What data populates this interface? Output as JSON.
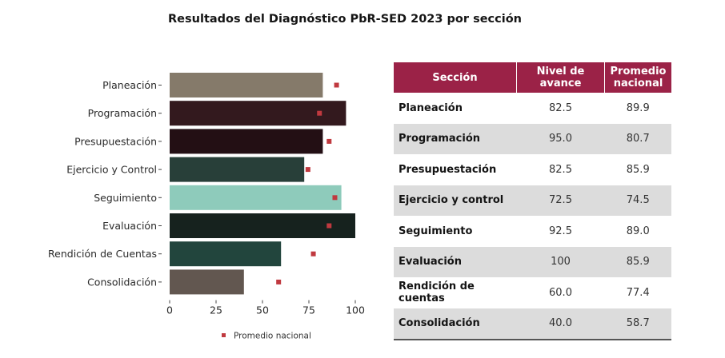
{
  "title": "Resultados del Diagnóstico PbR-SED 2023 por sección",
  "chart_data": {
    "type": "bar",
    "orientation": "horizontal",
    "title": "Resultados del Diagnóstico PbR-SED 2023 por sección",
    "xlabel": "",
    "ylabel": "",
    "xlim": [
      0,
      100
    ],
    "xticks": [
      0,
      25,
      50,
      75,
      100
    ],
    "grid": false,
    "categories": [
      "Planeación",
      "Programación",
      "Presupuestación",
      "Ejercicio y Control",
      "Seguimiento",
      "Evaluación",
      "Rendición de Cuentas",
      "Consolidación"
    ],
    "series": [
      {
        "name": "Nivel de avance",
        "type": "bar",
        "values": [
          82.5,
          95.0,
          82.5,
          72.5,
          92.5,
          100,
          60.0,
          40.0
        ],
        "colors": [
          "#857a6a",
          "#33191e",
          "#230f14",
          "#283f39",
          "#8ecbbb",
          "#16221e",
          "#22453d",
          "#625750"
        ]
      },
      {
        "name": "Promedio nacional",
        "type": "marker",
        "values": [
          89.9,
          80.7,
          85.9,
          74.5,
          89.0,
          85.9,
          77.4,
          58.7
        ],
        "color": "#c0393f"
      }
    ],
    "legend": {
      "entries": [
        "Promedio nacional"
      ],
      "position": "bottom"
    }
  },
  "table": {
    "headers": [
      "Sección",
      "Nivel de avance",
      "Promedio nacional"
    ],
    "header_color": "#9b2247",
    "rows": [
      {
        "seccion": "Planeación",
        "nivel": "82.5",
        "promedio": "89.9"
      },
      {
        "seccion": "Programación",
        "nivel": "95.0",
        "promedio": "80.7"
      },
      {
        "seccion": "Presupuestación",
        "nivel": "82.5",
        "promedio": "85.9"
      },
      {
        "seccion": "Ejercicio y control",
        "nivel": "72.5",
        "promedio": "74.5"
      },
      {
        "seccion": "Seguimiento",
        "nivel": "92.5",
        "promedio": "89.0"
      },
      {
        "seccion": "Evaluación",
        "nivel": "100",
        "promedio": "85.9"
      },
      {
        "seccion": "Rendición de cuentas",
        "nivel": "60.0",
        "promedio": "77.4"
      },
      {
        "seccion": "Consolidación",
        "nivel": "40.0",
        "promedio": "58.7"
      }
    ]
  }
}
